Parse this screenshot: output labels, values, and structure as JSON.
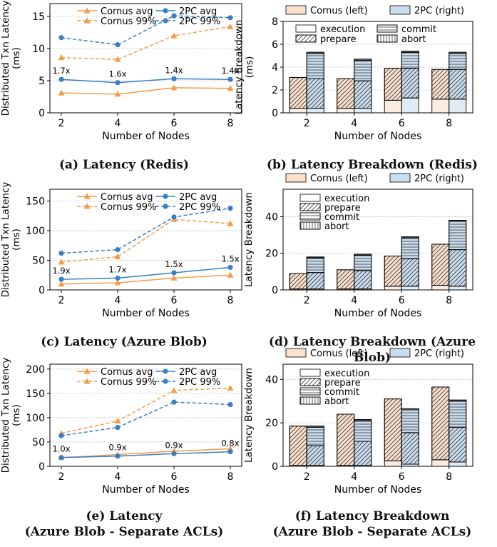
{
  "colors": {
    "cornus": "#f39c4a",
    "twopc": "#3a7fc4",
    "cornus_bar": "#fbe0cc",
    "twopc_bar": "#c9ddee"
  },
  "captions": {
    "a": [
      "(a) Latency (Redis)"
    ],
    "b": [
      "(b) Latency Breakdown (Redis)"
    ],
    "c": [
      "(c) Latency (Azure Blob)"
    ],
    "d": [
      "(d) Latency Breakdown (Azure Blob)"
    ],
    "e": [
      "(e) Latency",
      "(Azure Blob - Separate ACLs)"
    ],
    "f": [
      "(f) Latency Breakdown",
      "(Azure Blob - Separate ACLs)"
    ]
  },
  "chart_data": [
    {
      "id": "a",
      "type": "line",
      "xlabel": "Number of Nodes",
      "ylabel": [
        "Distributed Txn Latency",
        "(ms)"
      ],
      "x": [
        2,
        4,
        6,
        8
      ],
      "ylim": [
        0,
        17
      ],
      "yticks": [
        0,
        5,
        10,
        15
      ],
      "legend": [
        "Cornus avg",
        "2PC avg",
        "Cornus 99%",
        "2PC 99%"
      ],
      "series": [
        {
          "name": "Cornus avg",
          "values": [
            3.1,
            2.9,
            3.9,
            3.8
          ]
        },
        {
          "name": "Cornus 99%",
          "values": [
            8.6,
            8.3,
            12.0,
            13.4
          ]
        },
        {
          "name": "2PC avg",
          "values": [
            5.2,
            4.7,
            5.3,
            5.2
          ]
        },
        {
          "name": "2PC 99%",
          "values": [
            11.7,
            10.6,
            15.1,
            14.8
          ]
        }
      ],
      "annotations": [
        "1.7x",
        "1.6x",
        "1.4x",
        "1.4x"
      ]
    },
    {
      "id": "b",
      "type": "bar",
      "xlabel": "Number of Nodes",
      "ylabel": [
        "Latency Breakdown",
        "(ms)"
      ],
      "categories": [
        "2",
        "4",
        "6",
        "8"
      ],
      "ylim": [
        0,
        8
      ],
      "yticks": [
        0,
        2,
        4,
        6,
        8
      ],
      "legend_top": [
        "Cornus (left)",
        "2PC (right)"
      ],
      "legend_parts": [
        "execution",
        "commit",
        "prepare",
        "abort"
      ],
      "cornus": {
        "execution": [
          0.4,
          0.4,
          1.1,
          1.2
        ],
        "prepare": [
          2.7,
          2.6,
          2.8,
          2.6
        ]
      },
      "twopc": {
        "execution": [
          0.4,
          0.4,
          1.3,
          1.2
        ],
        "prepare": [
          2.6,
          2.4,
          2.6,
          2.6
        ],
        "commit": [
          2.2,
          1.8,
          1.4,
          1.4
        ],
        "abort": [
          0.1,
          0.1,
          0.1,
          0.1
        ]
      }
    },
    {
      "id": "c",
      "type": "line",
      "xlabel": "Number of Nodes",
      "ylabel": [
        "Distributed Txn Latency",
        "(ms)"
      ],
      "x": [
        2,
        4,
        6,
        8
      ],
      "ylim": [
        0,
        170
      ],
      "yticks": [
        0,
        50,
        100,
        150
      ],
      "legend": [
        "Cornus avg",
        "2PC avg",
        "Cornus 99%",
        "2PC 99%"
      ],
      "series": [
        {
          "name": "Cornus avg",
          "values": [
            10,
            12,
            20,
            25
          ]
        },
        {
          "name": "Cornus 99%",
          "values": [
            47,
            56,
            119,
            112
          ]
        },
        {
          "name": "2PC avg",
          "values": [
            18,
            20,
            29,
            38
          ]
        },
        {
          "name": "2PC 99%",
          "values": [
            62,
            68,
            123,
            138
          ]
        }
      ],
      "annotations": [
        "1.9x",
        "1.7x",
        "1.5x",
        "1.5x"
      ]
    },
    {
      "id": "d",
      "type": "bar",
      "xlabel": "Number of Nodes",
      "ylabel": [
        "Latency Breakdown"
      ],
      "categories": [
        "2",
        "4",
        "6",
        "8"
      ],
      "ylim": [
        0,
        55
      ],
      "yticks": [
        0,
        20,
        40
      ],
      "legend_top": [
        "Cornus (left)",
        "2PC (right)"
      ],
      "legend_parts": [
        "execution",
        "prepare",
        "commit",
        "abort"
      ],
      "cornus": {
        "execution": [
          0.5,
          0.5,
          2,
          2.5
        ],
        "prepare": [
          8.5,
          10.5,
          16.5,
          22.5
        ]
      },
      "twopc": {
        "execution": [
          0.5,
          0.5,
          2,
          2
        ],
        "prepare": [
          9,
          10,
          15,
          20
        ],
        "commit": [
          8,
          8.5,
          11.5,
          15.5
        ],
        "abort": [
          0.5,
          0.5,
          0.5,
          0.5
        ]
      }
    },
    {
      "id": "e",
      "type": "line",
      "xlabel": "Number of Nodes",
      "ylabel": [
        "Distributed Txn Latency",
        "(ms)"
      ],
      "x": [
        2,
        4,
        6,
        8
      ],
      "ylim": [
        0,
        210
      ],
      "yticks": [
        0,
        50,
        100,
        150,
        200
      ],
      "legend": [
        "Cornus avg",
        "2PC avg",
        "Cornus 99%",
        "2PC 99%"
      ],
      "series": [
        {
          "name": "Cornus avg",
          "values": [
            18,
            24,
            31,
            36
          ]
        },
        {
          "name": "Cornus 99%",
          "values": [
            68,
            93,
            156,
            161
          ]
        },
        {
          "name": "2PC avg",
          "values": [
            18,
            21,
            26,
            30
          ]
        },
        {
          "name": "2PC 99%",
          "values": [
            63,
            80,
            132,
            127
          ]
        }
      ],
      "annotations": [
        "1.0x",
        "0.9x",
        "0.9x",
        "0.8x"
      ]
    },
    {
      "id": "f",
      "type": "bar",
      "xlabel": "Number of Nodes",
      "ylabel": [
        "Latency Breakdown"
      ],
      "categories": [
        "2",
        "4",
        "6",
        "8"
      ],
      "ylim": [
        0,
        47
      ],
      "yticks": [
        0,
        20,
        40
      ],
      "legend_top": [
        "Cornus (left)",
        "2PC (right)"
      ],
      "legend_parts": [
        "execution",
        "prepare",
        "commit",
        "abort"
      ],
      "cornus": {
        "execution": [
          0.5,
          0.5,
          2.5,
          3
        ],
        "prepare": [
          18,
          23.5,
          28.5,
          33.5
        ]
      },
      "twopc": {
        "execution": [
          0.5,
          0.5,
          1,
          2
        ],
        "prepare": [
          9,
          11,
          14.5,
          16
        ],
        "commit": [
          8.5,
          9.5,
          10.5,
          12
        ],
        "abort": [
          0.5,
          0.5,
          0.5,
          0.5
        ]
      }
    }
  ]
}
